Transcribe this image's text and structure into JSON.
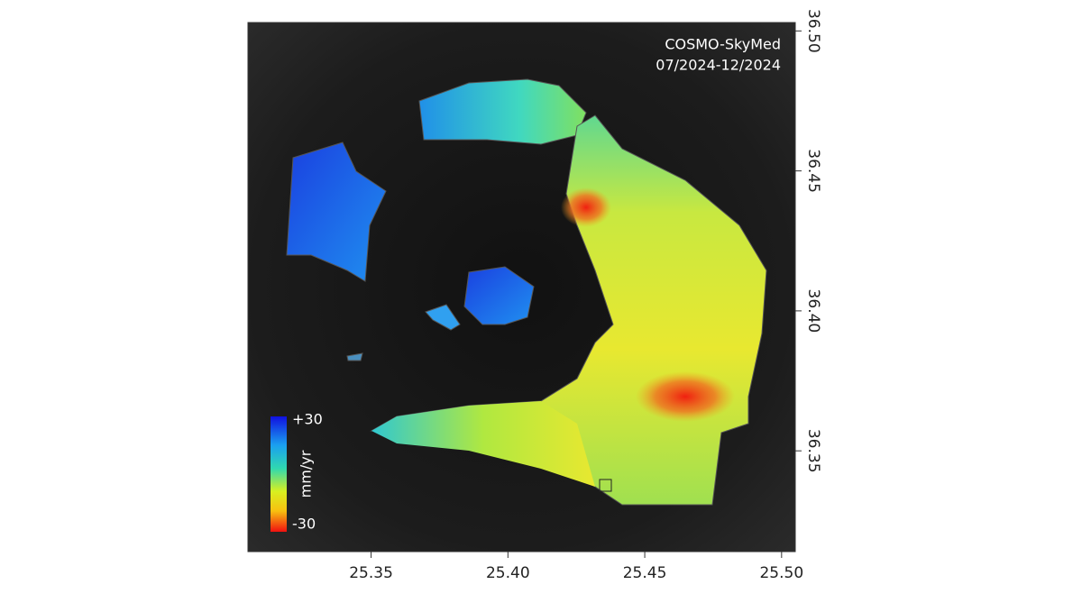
{
  "map": {
    "annotation": [
      "COSMO-SkyMed",
      "07/2024-12/2024"
    ],
    "xlim": [
      25.305,
      25.505
    ],
    "xticks": [
      25.35,
      {
        "value": 25.4,
        "label": "25.40"
      },
      25.45,
      {
        "value": 25.5,
        "label": "25.50"
      }
    ],
    "ylim": [
      36.314,
      36.503
    ],
    "yticks": [
      36.35,
      {
        "value": 36.4,
        "label": "36.40"
      },
      36.45,
      {
        "value": 36.5,
        "label": "36.50"
      }
    ],
    "colorbar": {
      "label": "mm/yr",
      "ticks": [
        {
          "value": 30,
          "label": "+30"
        },
        -30
      ]
    }
  }
}
